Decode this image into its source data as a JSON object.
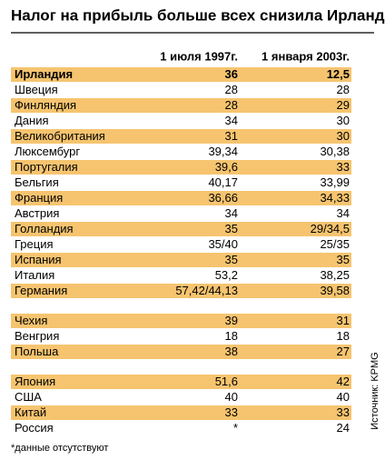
{
  "title": "Налог на прибыль больше всех снизила Ирландия",
  "table": {
    "header": [
      "1 июля 1997г.",
      "1 января 2003г."
    ],
    "groups": [
      {
        "rows": [
          [
            "Ирландия",
            "36",
            "12,5"
          ],
          [
            "Швеция",
            "28",
            "28"
          ],
          [
            "Финляндия",
            "28",
            "29"
          ],
          [
            "Дания",
            "34",
            "30"
          ],
          [
            "Великобритания",
            "31",
            "30"
          ],
          [
            "Люксембург",
            "39,34",
            "30,38"
          ],
          [
            "Португалия",
            "39,6",
            "33"
          ],
          [
            "Бельгия",
            "40,17",
            "33,99"
          ],
          [
            "Франция",
            "36,66",
            "34,33"
          ],
          [
            "Австрия",
            "34",
            "34"
          ],
          [
            "Голландия",
            "35",
            "29/34,5"
          ],
          [
            "Греция",
            "35/40",
            "25/35"
          ],
          [
            "Испания",
            "35",
            "35"
          ],
          [
            "Италия",
            "53,2",
            "38,25"
          ],
          [
            "Германия",
            "57,42/44,13",
            "39,58"
          ]
        ]
      },
      {
        "rows": [
          [
            "Чехия",
            "39",
            "31"
          ],
          [
            "Венгрия",
            "18",
            "18"
          ],
          [
            "Польша",
            "38",
            "27"
          ]
        ]
      },
      {
        "rows": [
          [
            "Япония",
            "51,6",
            "42"
          ],
          [
            "США",
            "40",
            "40"
          ],
          [
            "Китай",
            "33",
            "33"
          ],
          [
            "Россия",
            "*",
            "24"
          ]
        ]
      }
    ]
  },
  "footnote": "*данные отсутствуют",
  "source": "Источник: KPMG"
}
